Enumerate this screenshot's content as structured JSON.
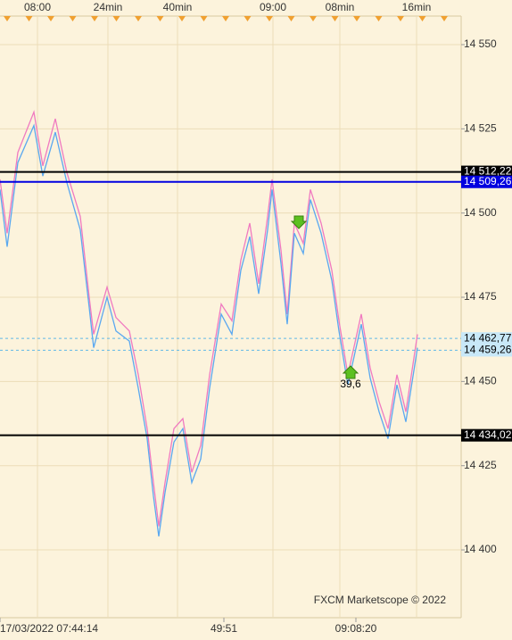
{
  "chart_data": {
    "type": "line",
    "x": [
      0,
      1.6,
      4,
      7.6,
      9.6,
      12.4,
      15,
      18,
      20,
      21,
      24,
      26,
      29,
      31,
      33,
      34.4,
      35.6,
      37,
      39,
      41,
      43,
      45,
      47,
      49.6,
      52,
      54,
      56,
      58,
      60,
      61,
      63,
      64.4,
      66,
      68,
      69.6,
      72,
      74.4,
      76,
      78,
      81,
      83,
      85,
      87,
      89,
      91,
      93.6
    ],
    "series": [
      {
        "color": "#f07ac0",
        "values": [
          14510,
          14494,
          14518,
          14530,
          14514,
          14528,
          14512,
          14499,
          14475,
          14464,
          14478,
          14469,
          14465,
          14452,
          14436,
          14420,
          14407,
          14420,
          14436,
          14439,
          14423,
          14431,
          14452,
          14473,
          14468,
          14486,
          14497,
          14479,
          14499,
          14510,
          14489,
          14470,
          14497,
          14491,
          14507,
          14497,
          14483,
          14468,
          14452,
          14470,
          14454,
          14444,
          14436,
          14452,
          14441,
          14464
        ]
      },
      {
        "color": "#5aa8f0",
        "values": [
          14507,
          14490,
          14515,
          14526,
          14511,
          14524,
          14509,
          14495,
          14472,
          14460,
          14475,
          14465,
          14462,
          14448,
          14433,
          14416,
          14404,
          14417,
          14432,
          14436,
          14420,
          14427,
          14448,
          14470,
          14464,
          14483,
          14493,
          14476,
          14495,
          14507,
          14485,
          14467,
          14494,
          14488,
          14504,
          14494,
          14480,
          14465,
          14449,
          14467,
          14451,
          14441,
          14433,
          14449,
          14438,
          14460
        ]
      }
    ],
    "xlim": [
      0,
      103.4
    ],
    "xticks_top": [
      {
        "value": 8.4,
        "label": "08:00"
      },
      {
        "value": 24.2,
        "label": "24min"
      },
      {
        "value": 39.8,
        "label": "40min"
      },
      {
        "value": 61.2,
        "label": "09:00"
      },
      {
        "value": 76.2,
        "label": "08min"
      },
      {
        "value": 93.4,
        "label": "16min"
      }
    ],
    "xticks_bottom": [
      {
        "value": 0,
        "label": "17/03/2022 07:44:14"
      },
      {
        "value": 50.2,
        "label": "49:51"
      },
      {
        "value": 79.8,
        "label": "09:08:20"
      }
    ],
    "ylim": [
      14380.4,
      14555.3
    ],
    "yticks": [
      {
        "value": 14400,
        "label": "14 400"
      },
      {
        "value": 14425,
        "label": "14 425"
      },
      {
        "value": 14450,
        "label": "14 450"
      },
      {
        "value": 14475,
        "label": "14 475"
      },
      {
        "value": 14500,
        "label": "14 500"
      },
      {
        "value": 14525,
        "label": "14 525"
      },
      {
        "value": 14550,
        "label": "14 550"
      }
    ],
    "levels": [
      {
        "value": 14512.22,
        "label": "14 512,22",
        "color": "#000000",
        "style": "solid"
      },
      {
        "value": 14509.26,
        "label": "14 509,26",
        "color": "#0000e0",
        "style": "solid"
      },
      {
        "value": 14462.77,
        "label": "14 462,77",
        "color": "#60b8e8",
        "style": "dashed"
      },
      {
        "value": 14459.26,
        "label": "14 459,26",
        "color": "#60b8e8",
        "style": "dashed"
      },
      {
        "value": 14434.02,
        "label": "14 434,02",
        "color": "#000000",
        "style": "solid"
      }
    ],
    "annotation": "39,6",
    "credit": "FXCM Marketscope © 2022",
    "grid": true
  }
}
